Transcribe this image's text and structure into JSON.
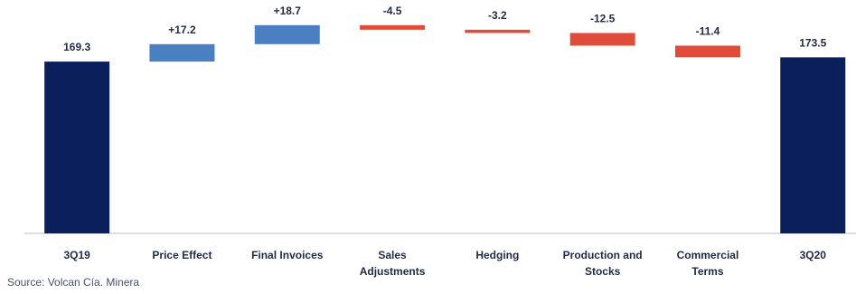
{
  "chart_data": {
    "type": "waterfall",
    "categories": [
      "3Q19",
      "Price Effect",
      "Final Invoices",
      "Sales Adjustments",
      "Hedging",
      "Production and Stocks",
      "Commercial Terms",
      "3Q20"
    ],
    "category_lines": [
      [
        "3Q19"
      ],
      [
        "Price Effect"
      ],
      [
        "Final Invoices"
      ],
      [
        "Sales",
        "Adjustments"
      ],
      [
        "Hedging"
      ],
      [
        "Production and",
        "Stocks"
      ],
      [
        "Commercial",
        "Terms"
      ],
      [
        "3Q20"
      ]
    ],
    "values": [
      169.3,
      17.2,
      18.7,
      -4.5,
      -3.2,
      -12.5,
      -11.4,
      173.5
    ],
    "labels": [
      "169.3",
      "+17.2",
      "+18.7",
      "-4.5",
      "-3.2",
      "-12.5",
      "-11.4",
      "173.5"
    ],
    "kinds": [
      "total",
      "delta",
      "delta",
      "delta",
      "delta",
      "delta",
      "delta",
      "total"
    ],
    "colors": {
      "total": "#0a1f5c",
      "increase": "#4a7fc1",
      "decrease": "#e04b3a",
      "axis": "#bfbfbf",
      "text": "#1f2a44"
    }
  },
  "source": "Source: Volcan Cía. Minera"
}
